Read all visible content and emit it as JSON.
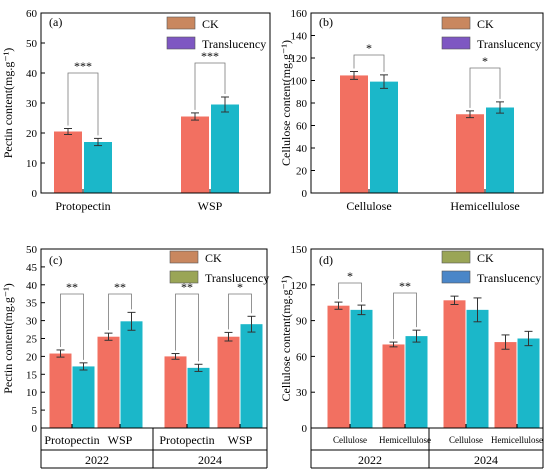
{
  "colors": {
    "ck": "#f27061",
    "translucency": "#1bb7c9",
    "legend_ck": "#c9875f",
    "legend_translucency": "#7e57c2",
    "legend_ck_d": "#9aa556",
    "legend_translucency_d": "#4a86c8",
    "error": "#333333"
  },
  "chart_data": [
    {
      "type": "bar",
      "panel": "(a)",
      "ylabel": "Pectin content(mg.g⁻¹)",
      "ylim": [
        0,
        60
      ],
      "yticks": [
        0,
        10,
        20,
        30,
        40,
        50,
        60
      ],
      "categories": [
        "Protopectin",
        "WSP"
      ],
      "series": [
        {
          "name": "CK",
          "values": [
            20.5,
            25.5
          ],
          "errors": [
            1.0,
            1.2
          ]
        },
        {
          "name": "Translucency",
          "values": [
            17.0,
            29.5
          ],
          "errors": [
            1.2,
            2.5
          ]
        }
      ],
      "significance": [
        "***",
        "***"
      ],
      "legend": [
        "CK",
        "Translucency"
      ]
    },
    {
      "type": "bar",
      "panel": "(b)",
      "ylabel": "Cellulose content(mg.g⁻¹)",
      "ylim": [
        0,
        160
      ],
      "yticks": [
        0,
        20,
        40,
        60,
        80,
        100,
        120,
        140,
        160
      ],
      "categories": [
        "Cellulose",
        "Hemicellulose"
      ],
      "series": [
        {
          "name": "CK",
          "values": [
            104.5,
            70.0
          ],
          "errors": [
            3.5,
            3.0
          ]
        },
        {
          "name": "Translucency",
          "values": [
            99.0,
            76.0
          ],
          "errors": [
            6.0,
            5.0
          ]
        }
      ],
      "significance": [
        "*",
        "*"
      ],
      "legend": [
        "CK",
        "Translucency"
      ]
    },
    {
      "type": "bar",
      "panel": "(c)",
      "ylabel": "Pectin content(mg.g⁻¹)",
      "ylim": [
        0,
        50
      ],
      "yticks": [
        0,
        5,
        10,
        15,
        20,
        25,
        30,
        35,
        40,
        45,
        50
      ],
      "categories": [
        "Protopectin",
        "WSP",
        "Protopectin",
        "WSP"
      ],
      "groups": [
        "2022",
        "2024"
      ],
      "series": [
        {
          "name": "CK",
          "values": [
            20.8,
            25.5,
            20.0,
            25.5
          ],
          "errors": [
            1.0,
            1.0,
            0.8,
            1.2
          ]
        },
        {
          "name": "Translucency",
          "values": [
            17.2,
            29.8,
            16.8,
            29.0
          ],
          "errors": [
            1.0,
            2.5,
            1.0,
            2.2
          ]
        }
      ],
      "significance": [
        "**",
        "**",
        "**",
        "*"
      ],
      "legend": [
        "CK",
        "Translucency"
      ]
    },
    {
      "type": "bar",
      "panel": "(d)",
      "ylabel": "Cellulose content(mg.g⁻¹)",
      "ylim": [
        0,
        150
      ],
      "yticks": [
        0,
        30,
        60,
        90,
        120,
        150
      ],
      "categories": [
        "Cellulose",
        "Hemicellulose",
        "Cellulose",
        "Hemicellulose"
      ],
      "groups": [
        "2022",
        "2024"
      ],
      "series": [
        {
          "name": "CK",
          "values": [
            102.5,
            70.0,
            107.0,
            72.0
          ],
          "errors": [
            3.0,
            2.0,
            3.5,
            6.0
          ]
        },
        {
          "name": "Translucency",
          "values": [
            99.0,
            77.0,
            99.0,
            75.0
          ],
          "errors": [
            4.0,
            5.0,
            10.0,
            6.0
          ]
        }
      ],
      "significance": [
        "*",
        "**",
        "",
        ""
      ],
      "legend": [
        "CK",
        "Translucency"
      ]
    }
  ]
}
